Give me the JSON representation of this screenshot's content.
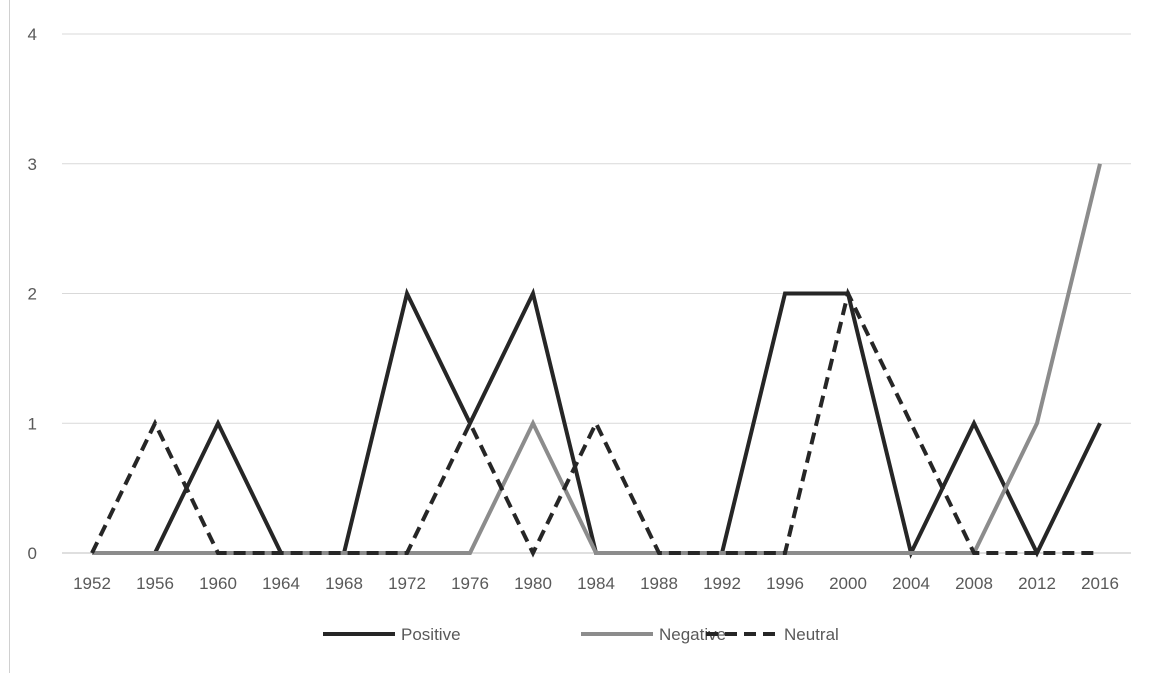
{
  "chart_data": {
    "type": "line",
    "categories": [
      "1952",
      "1956",
      "1960",
      "1964",
      "1968",
      "1972",
      "1976",
      "1980",
      "1984",
      "1988",
      "1992",
      "1996",
      "2000",
      "2004",
      "2008",
      "2012",
      "2016"
    ],
    "ylim": [
      0,
      4
    ],
    "yticks": [
      0,
      1,
      2,
      3,
      4
    ],
    "grid": true,
    "legend_position": "bottom",
    "series": [
      {
        "name": "Positive",
        "color": "#262626",
        "dash": "solid",
        "values": [
          0,
          0,
          1,
          0,
          0,
          2,
          1,
          2,
          0,
          0,
          0,
          2,
          2,
          0,
          1,
          0,
          1
        ]
      },
      {
        "name": "Negative",
        "color": "#8c8c8c",
        "dash": "solid",
        "values": [
          0,
          0,
          0,
          0,
          0,
          0,
          0,
          1,
          0,
          0,
          0,
          0,
          0,
          0,
          0,
          1,
          3
        ]
      },
      {
        "name": "Neutral",
        "color": "#262626",
        "dash": "dashed",
        "values": [
          0,
          1,
          0,
          0,
          0,
          0,
          1,
          0,
          1,
          0,
          0,
          0,
          2,
          1,
          0,
          0,
          0
        ]
      }
    ]
  }
}
